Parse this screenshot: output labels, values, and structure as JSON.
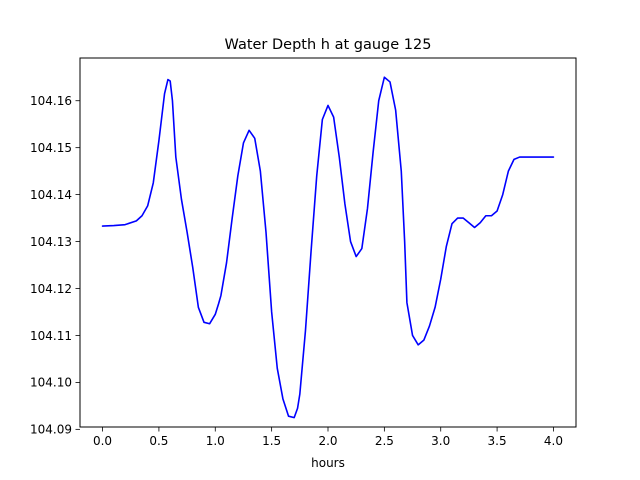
{
  "chart_data": {
    "type": "line",
    "title": "Water Depth h at gauge 125",
    "xlabel": "hours",
    "ylabel": "",
    "xlim": [
      -0.2,
      4.2
    ],
    "ylim": [
      104.0905,
      104.1691
    ],
    "xticks": [
      0.0,
      0.5,
      1.0,
      1.5,
      2.0,
      2.5,
      3.0,
      3.5,
      4.0
    ],
    "xtick_labels": [
      "0.0",
      "0.5",
      "1.0",
      "1.5",
      "2.0",
      "2.5",
      "3.0",
      "3.5",
      "4.0"
    ],
    "yticks": [
      104.09,
      104.1,
      104.11,
      104.12,
      104.13,
      104.14,
      104.15,
      104.16
    ],
    "ytick_labels": [
      "104.09",
      "104.10",
      "104.11",
      "104.12",
      "104.13",
      "104.14",
      "104.15",
      "104.16"
    ],
    "grid": false,
    "series": [
      {
        "color": "#0000ff",
        "x": [
          0.0,
          0.1,
          0.2,
          0.3,
          0.35,
          0.4,
          0.45,
          0.5,
          0.55,
          0.58,
          0.6,
          0.62,
          0.65,
          0.7,
          0.75,
          0.8,
          0.85,
          0.9,
          0.95,
          1.0,
          1.03,
          1.05,
          1.1,
          1.15,
          1.2,
          1.25,
          1.3,
          1.35,
          1.4,
          1.45,
          1.5,
          1.55,
          1.6,
          1.65,
          1.7,
          1.73,
          1.75,
          1.8,
          1.85,
          1.9,
          1.95,
          2.0,
          2.05,
          2.1,
          2.15,
          2.2,
          2.25,
          2.3,
          2.35,
          2.4,
          2.45,
          2.5,
          2.55,
          2.6,
          2.65,
          2.68,
          2.7,
          2.75,
          2.8,
          2.85,
          2.9,
          2.95,
          3.0,
          3.05,
          3.1,
          3.15,
          3.2,
          3.25,
          3.3,
          3.35,
          3.4,
          3.45,
          3.5,
          3.55,
          3.6,
          3.65,
          3.7,
          3.75,
          3.8,
          3.85,
          3.9,
          3.95,
          4.0
        ],
        "y": [
          104.1333,
          104.1334,
          104.1336,
          104.1344,
          104.1355,
          104.1376,
          104.1425,
          104.1515,
          104.1615,
          104.1645,
          104.1642,
          104.16,
          104.148,
          104.139,
          104.132,
          104.1245,
          104.116,
          104.1128,
          104.1125,
          104.1145,
          104.1168,
          104.1185,
          104.1255,
          104.135,
          104.144,
          104.151,
          104.1537,
          104.152,
          104.145,
          104.132,
          104.115,
          104.103,
          104.0965,
          104.0928,
          104.0925,
          104.0945,
          104.0975,
          104.111,
          104.128,
          104.144,
          104.156,
          104.159,
          104.1565,
          104.148,
          104.138,
          104.13,
          104.1268,
          104.1285,
          104.137,
          104.149,
          104.16,
          104.165,
          104.164,
          104.158,
          104.145,
          104.13,
          104.117,
          104.11,
          104.108,
          104.109,
          104.112,
          104.116,
          104.122,
          104.129,
          104.1338,
          104.135,
          104.135,
          104.134,
          104.133,
          104.134,
          104.1355,
          104.1355,
          104.1365,
          104.14,
          104.145,
          104.1475,
          104.148,
          104.148,
          104.148,
          104.148,
          104.148,
          104.148,
          104.148
        ]
      }
    ]
  }
}
